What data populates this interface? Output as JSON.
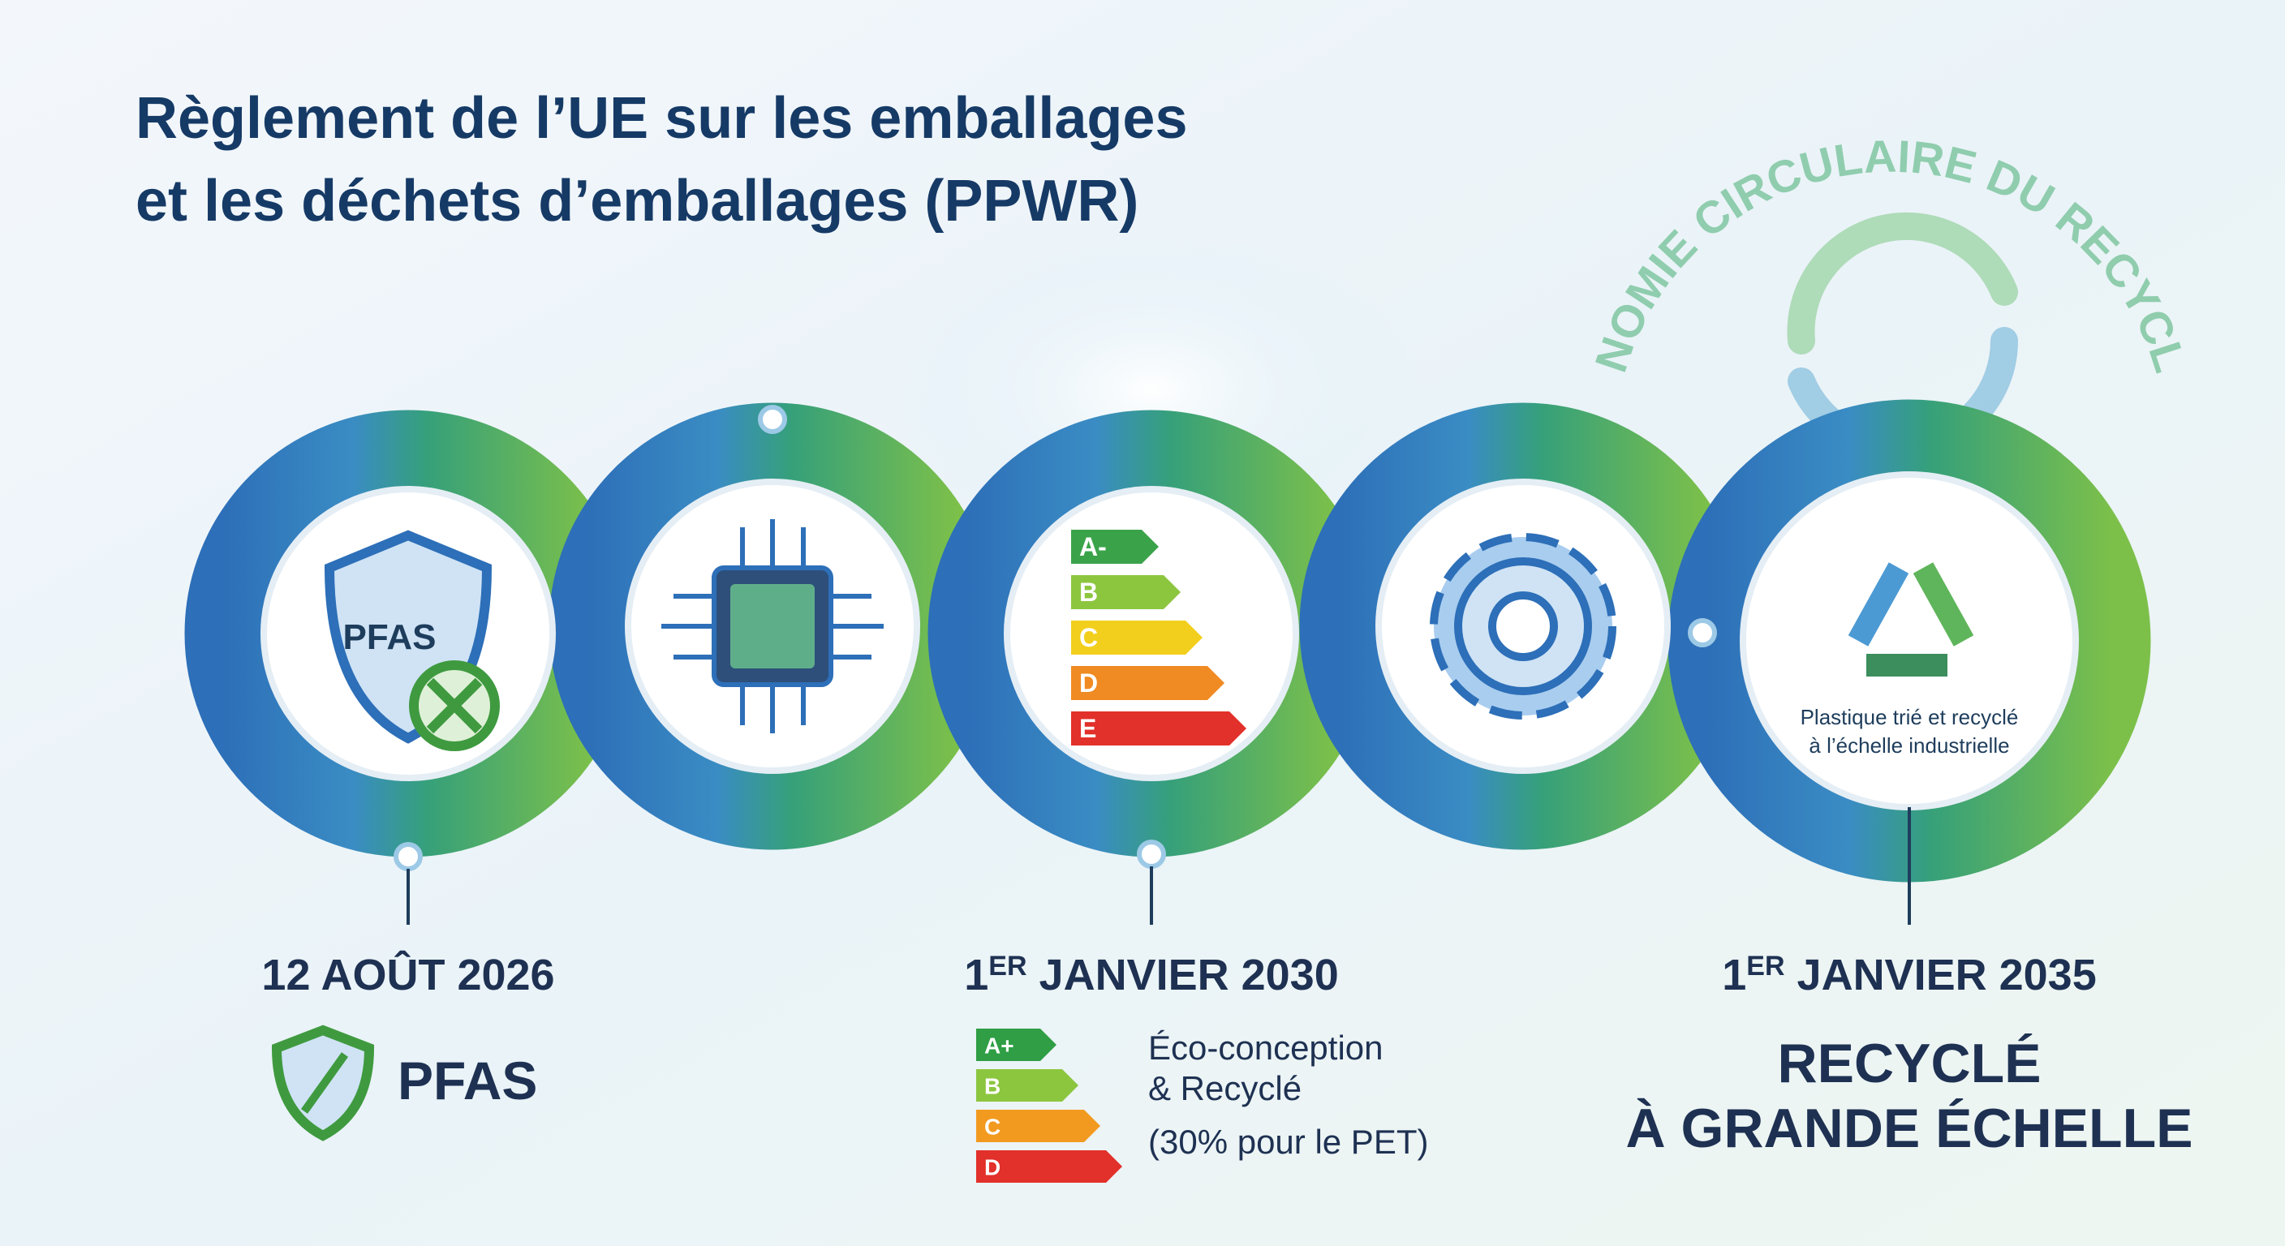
{
  "header": {
    "title_lines": [
      "Règlement de l’UE sur les emballages",
      "et les déchets d’emballages (PPWR)"
    ]
  },
  "circular_banner": "ÉCONOMIE CIRCULAIRE DU RECYCLAGE",
  "stages": {
    "shield_label": "PFAS",
    "energy_scale": [
      {
        "label": "A-",
        "color": "#3aa34a"
      },
      {
        "label": "B",
        "color": "#8cc63f"
      },
      {
        "label": "C",
        "color": "#f2cf1d"
      },
      {
        "label": "D",
        "color": "#f08a22"
      },
      {
        "label": "E",
        "color": "#e2302a"
      }
    ],
    "recycling_caption": [
      "Plastique trié et recyclé",
      "à l’échelle industrielle"
    ]
  },
  "milestones": [
    {
      "date": [
        "12 AOÛT 2026"
      ],
      "title": "PFAS"
    },
    {
      "date": [
        "1",
        "ER",
        " JANVIER 2030"
      ],
      "energy_scale": [
        {
          "label": "A+",
          "color": "#2f9e45"
        },
        {
          "label": "B",
          "color": "#8cc63f"
        },
        {
          "label": "C",
          "color": "#f29a1f"
        },
        {
          "label": "D",
          "color": "#e2302a"
        }
      ],
      "description": [
        "Éco-conception",
        "& Recyclé",
        "(30% pour le PET)"
      ]
    },
    {
      "date": [
        "1",
        "ER",
        " JANVIER 2035"
      ],
      "title_lines": [
        "RECYCLÉ",
        "À GRANDE ÉCHELLE"
      ]
    }
  ]
}
